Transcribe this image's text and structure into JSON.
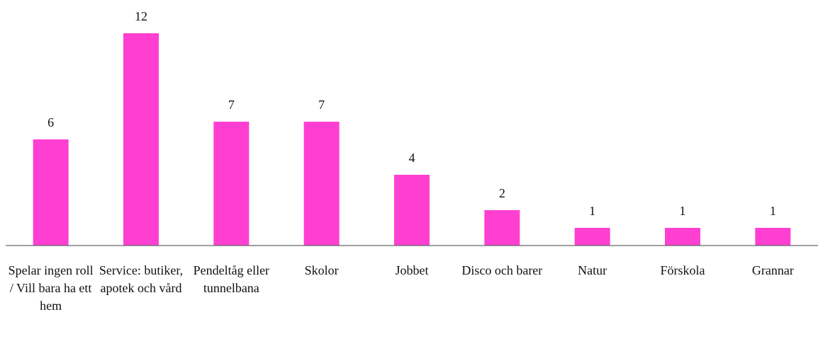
{
  "chart_data": {
    "type": "bar",
    "categories": [
      "Spelar ingen roll / Vill bara ha ett hem",
      "Service: butiker, apotek och vård",
      "Pendeltåg eller tunnelbana",
      "Skolor",
      "Jobbet",
      "Disco och barer",
      "Natur",
      "Förskola",
      "Grannar"
    ],
    "values": [
      6,
      12,
      7,
      7,
      4,
      2,
      1,
      1,
      1
    ],
    "color": "#ff3fd2",
    "ylim": [
      0,
      12
    ]
  }
}
